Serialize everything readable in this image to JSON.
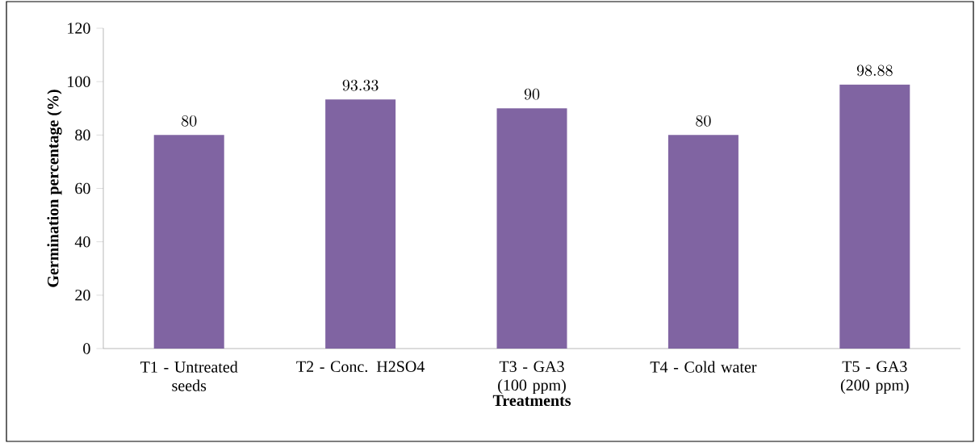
{
  "chart_data": {
    "type": "bar",
    "xlabel": "Treatments",
    "ylabel": "Germination percentage (%)",
    "categories": [
      "T1 - Untreated seeds",
      "T2 - Conc. H2SO4",
      "T3 - GA3 (100 ppm)",
      "T4 - Cold water",
      "T5 - GA3 (200 ppm)"
    ],
    "values": [
      80,
      93.33,
      90,
      80,
      98.88
    ],
    "color": "#8064a2",
    "ylim": [
      0,
      120
    ],
    "yticks": [
      0,
      20,
      40,
      60,
      80,
      100,
      120
    ],
    "data_labels": true
  }
}
